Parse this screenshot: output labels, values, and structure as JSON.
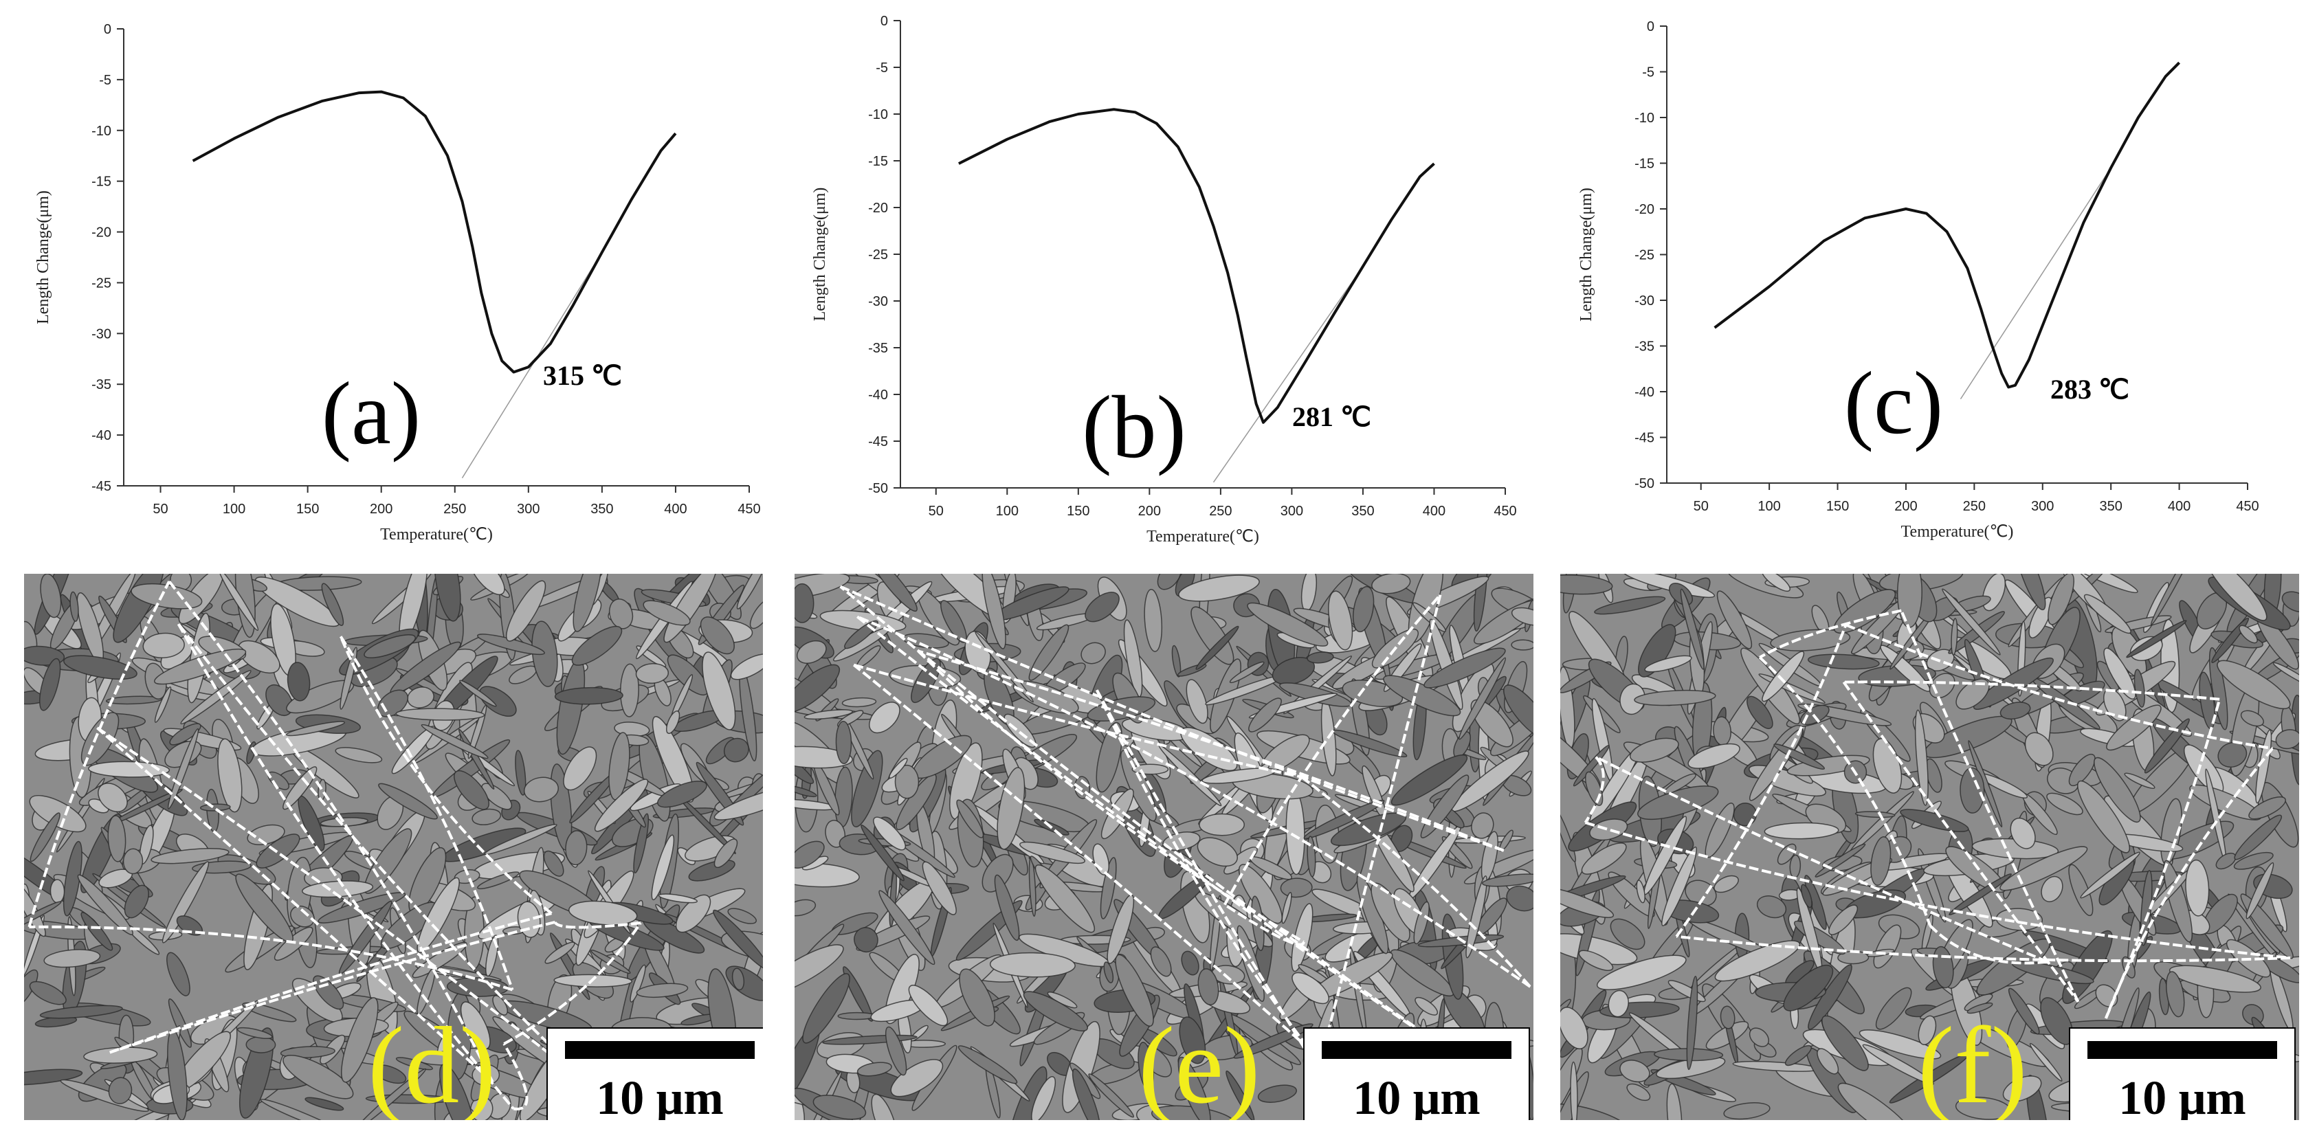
{
  "colors": {
    "curve": "#111111",
    "axis": "#333333",
    "panel_label": "#f2ee1c",
    "boundary": "#ffffff"
  },
  "chart_data": [
    {
      "type": "line",
      "xlabel": "Temperature(℃)",
      "ylabel": "Length Change(μm)",
      "xlim": [
        25,
        450
      ],
      "ylim": [
        -45,
        0
      ],
      "xticks": [
        50,
        100,
        150,
        200,
        250,
        300,
        350,
        400,
        450
      ],
      "yticks": [
        0,
        -5,
        -10,
        -15,
        -20,
        -25,
        -30,
        -35,
        -40,
        -45
      ],
      "panel_label": "(a)",
      "annotation": "315 ℃",
      "x": [
        72,
        100,
        130,
        160,
        185,
        200,
        215,
        230,
        245,
        255,
        262,
        268,
        275,
        282,
        290,
        300,
        315,
        330,
        350,
        370,
        390,
        400
      ],
      "y": [
        -13,
        -10.8,
        -8.7,
        -7.1,
        -6.3,
        -6.2,
        -6.8,
        -8.6,
        -12.5,
        -17,
        -21.5,
        -26,
        -30,
        -32.7,
        -33.8,
        -33.3,
        -31,
        -27.3,
        -22,
        -16.8,
        -12,
        -10.3
      ]
    },
    {
      "type": "line",
      "xlabel": "Temperature(℃)",
      "ylabel": "Length Change(μm)",
      "xlim": [
        25,
        450
      ],
      "ylim": [
        -50,
        0
      ],
      "xticks": [
        50,
        100,
        150,
        200,
        250,
        300,
        350,
        400,
        450
      ],
      "yticks": [
        0,
        -5,
        -10,
        -15,
        -20,
        -25,
        -30,
        -35,
        -40,
        -45,
        -50
      ],
      "panel_label": "(b)",
      "annotation": "281 ℃",
      "x": [
        66,
        100,
        130,
        150,
        175,
        190,
        205,
        220,
        235,
        245,
        255,
        262,
        268,
        275,
        280,
        290,
        310,
        330,
        350,
        370,
        390,
        400
      ],
      "y": [
        -15.3,
        -12.7,
        -10.8,
        -10,
        -9.5,
        -9.8,
        -11,
        -13.5,
        -17.8,
        -22,
        -27,
        -31.5,
        -36,
        -41,
        -43,
        -41.4,
        -36.4,
        -31.3,
        -26.3,
        -21.3,
        -16.7,
        -15.3
      ]
    },
    {
      "type": "line",
      "xlabel": "Temperature(℃)",
      "ylabel": "Length Change(μm)",
      "xlim": [
        25,
        450
      ],
      "ylim": [
        -50,
        0
      ],
      "xticks": [
        50,
        100,
        150,
        200,
        250,
        300,
        350,
        400,
        450
      ],
      "yticks": [
        0,
        -5,
        -10,
        -15,
        -20,
        -25,
        -30,
        -35,
        -40,
        -45,
        -50
      ],
      "panel_label": "(c)",
      "annotation": "283 ℃",
      "x": [
        60,
        100,
        140,
        170,
        200,
        215,
        230,
        245,
        255,
        262,
        270,
        275,
        280,
        290,
        310,
        330,
        350,
        370,
        390,
        400
      ],
      "y": [
        -33,
        -28.5,
        -23.5,
        -21,
        -20,
        -20.5,
        -22.5,
        -26.5,
        -31,
        -34.5,
        -38,
        -39.5,
        -39.3,
        -36.5,
        -29,
        -21.5,
        -15.5,
        -10,
        -5.5,
        -4
      ]
    }
  ],
  "micrographs": [
    {
      "label": "(d)",
      "scale": "10 μm"
    },
    {
      "label": "(e)",
      "scale": "10 μm"
    },
    {
      "label": "(f)",
      "scale": "10 μm"
    }
  ]
}
